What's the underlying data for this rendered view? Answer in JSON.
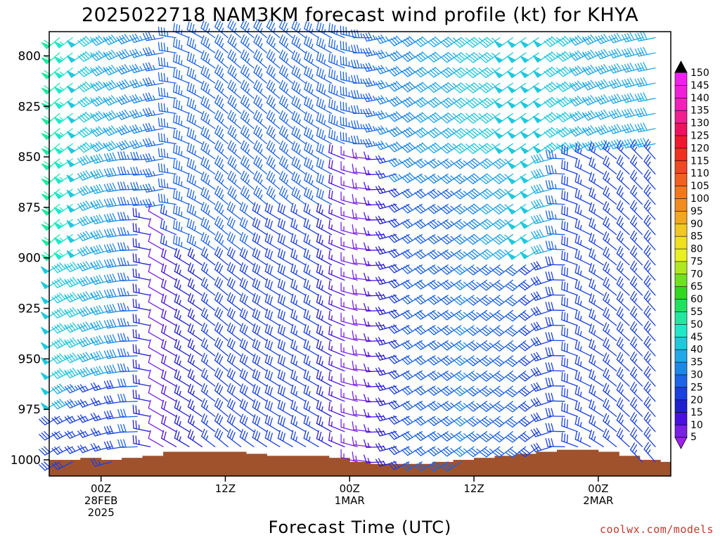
{
  "chart_data": {
    "type": "wind-barb-profile",
    "title": "2025022718 NAM3KM forecast wind profile (kt) for KHYA",
    "xlabel": "Forecast Time (UTC)",
    "ylabel": "",
    "credit": "coolwx.com/models",
    "y_axis": {
      "scale": "pressure",
      "range": [
        788,
        1008
      ],
      "ticks": [
        800,
        825,
        850,
        875,
        900,
        925,
        950,
        975,
        1000
      ]
    },
    "x_axis": {
      "range_hours": [
        -5,
        55
      ],
      "ticks": [
        {
          "hour": 0,
          "label": [
            "00Z",
            "28FEB",
            "2025"
          ]
        },
        {
          "hour": 12,
          "label": [
            "12Z"
          ]
        },
        {
          "hour": 24,
          "label": [
            "00Z",
            "1MAR"
          ]
        },
        {
          "hour": 36,
          "label": [
            "12Z"
          ]
        },
        {
          "hour": 48,
          "label": [
            "00Z",
            "2MAR"
          ]
        }
      ]
    },
    "colorbar": {
      "levels": [
        5,
        10,
        15,
        20,
        25,
        30,
        35,
        40,
        45,
        50,
        55,
        60,
        65,
        70,
        75,
        80,
        85,
        90,
        95,
        100,
        105,
        110,
        115,
        120,
        125,
        130,
        135,
        140,
        145,
        150
      ],
      "colors": [
        "#a020f0",
        "#7a20e8",
        "#4a10e0",
        "#2020d0",
        "#1a40e0",
        "#1e64e6",
        "#1e88e8",
        "#20a8e8",
        "#20c8dc",
        "#20e8c8",
        "#20e8a0",
        "#20e060",
        "#30d820",
        "#70e020",
        "#b0e820",
        "#e8f020",
        "#f0e020",
        "#f0c820",
        "#f0a820",
        "#f08c20",
        "#f07820",
        "#f06020",
        "#f04820",
        "#f03020",
        "#f01830",
        "#f01060",
        "#f02090",
        "#f020b8",
        "#f020d8",
        "#f020f0"
      ]
    },
    "surface_pressure": {
      "hours": [
        -5,
        -3,
        -1,
        1,
        3,
        5,
        7,
        9,
        11,
        13,
        15,
        17,
        19,
        21,
        23,
        25,
        27,
        29,
        31,
        33,
        35,
        37,
        39,
        41,
        43,
        45,
        47,
        49,
        51,
        53,
        55
      ],
      "values": [
        1000,
        1000,
        999,
        1000,
        999,
        998,
        996,
        996,
        996,
        996,
        997,
        998,
        998,
        998,
        999,
        1001,
        1002,
        1002,
        1002,
        1001,
        1000,
        999,
        998,
        997,
        996,
        995,
        995,
        996,
        998,
        1000,
        1001
      ]
    },
    "wind_columns": [
      {
        "hour": -4,
        "segments": [
          {
            "p": [
              790,
              900
            ],
            "speed": 58,
            "dir": 230
          },
          {
            "p": [
              900,
              975
            ],
            "speed": 48,
            "dir": 240
          },
          {
            "p": [
              975,
              1000
            ],
            "speed": 28,
            "dir": 240
          }
        ]
      },
      {
        "hour": 0,
        "segments": [
          {
            "p": [
              790,
              850
            ],
            "speed": 45,
            "dir": 240
          },
          {
            "p": [
              850,
              960
            ],
            "speed": 44,
            "dir": 250
          },
          {
            "p": [
              960,
              1000
            ],
            "speed": 25,
            "dir": 250
          }
        ]
      },
      {
        "hour": 4,
        "segments": [
          {
            "p": [
              790,
              850
            ],
            "speed": 38,
            "dir": 250
          },
          {
            "p": [
              850,
              1000
            ],
            "speed": 33,
            "dir": 270
          }
        ]
      },
      {
        "hour": 6,
        "segments": [
          {
            "p": [
              790,
              880
            ],
            "speed": 33,
            "dir": 260
          },
          {
            "p": [
              880,
              1000
            ],
            "speed": 10,
            "dir": 300
          }
        ]
      },
      {
        "hour": 8,
        "segments": [
          {
            "p": [
              790,
              900
            ],
            "speed": 35,
            "dir": 290
          },
          {
            "p": [
              900,
              1000
            ],
            "speed": 22,
            "dir": 300
          }
        ]
      },
      {
        "hour": 12,
        "segments": [
          {
            "p": [
              790,
              900
            ],
            "speed": 33,
            "dir": 310
          },
          {
            "p": [
              900,
              1000
            ],
            "speed": 28,
            "dir": 310
          }
        ]
      },
      {
        "hour": 18,
        "segments": [
          {
            "p": [
              790,
              880
            ],
            "speed": 33,
            "dir": 310
          },
          {
            "p": [
              880,
              1000
            ],
            "speed": 28,
            "dir": 300
          }
        ]
      },
      {
        "hour": 22,
        "segments": [
          {
            "p": [
              790,
              880
            ],
            "speed": 35,
            "dir": 300
          },
          {
            "p": [
              880,
              1000
            ],
            "speed": 25,
            "dir": 300
          }
        ]
      },
      {
        "hour": 24,
        "segments": [
          {
            "p": [
              790,
              850
            ],
            "speed": 33,
            "dir": 290
          },
          {
            "p": [
              850,
              1000
            ],
            "speed": 12,
            "dir": 290
          }
        ]
      },
      {
        "hour": 27,
        "segments": [
          {
            "p": [
              790,
              850
            ],
            "speed": 33,
            "dir": 260
          },
          {
            "p": [
              850,
              1000
            ],
            "speed": 15,
            "dir": 270
          }
        ]
      },
      {
        "hour": 30,
        "segments": [
          {
            "p": [
              790,
              860
            ],
            "speed": 38,
            "dir": 240
          },
          {
            "p": [
              860,
              1000
            ],
            "speed": 30,
            "dir": 240
          }
        ]
      },
      {
        "hour": 36,
        "segments": [
          {
            "p": [
              790,
              850
            ],
            "speed": 45,
            "dir": 235
          },
          {
            "p": [
              850,
              1000
            ],
            "speed": 35,
            "dir": 235
          }
        ]
      },
      {
        "hour": 42,
        "segments": [
          {
            "p": [
              790,
              900
            ],
            "speed": 50,
            "dir": 235
          },
          {
            "p": [
              900,
              1000
            ],
            "speed": 30,
            "dir": 230
          }
        ]
      },
      {
        "hour": 46,
        "segments": [
          {
            "p": [
              790,
              850
            ],
            "speed": 45,
            "dir": 240
          },
          {
            "p": [
              850,
              1000
            ],
            "speed": 28,
            "dir": 290
          }
        ]
      },
      {
        "hour": 50,
        "segments": [
          {
            "p": [
              790,
              850
            ],
            "speed": 42,
            "dir": 250
          },
          {
            "p": [
              850,
              1000
            ],
            "speed": 25,
            "dir": 310
          }
        ]
      },
      {
        "hour": 54,
        "segments": [
          {
            "p": [
              790,
              850
            ],
            "speed": 40,
            "dir": 260
          },
          {
            "p": [
              850,
              1000
            ],
            "speed": 25,
            "dir": 320
          }
        ]
      }
    ]
  }
}
